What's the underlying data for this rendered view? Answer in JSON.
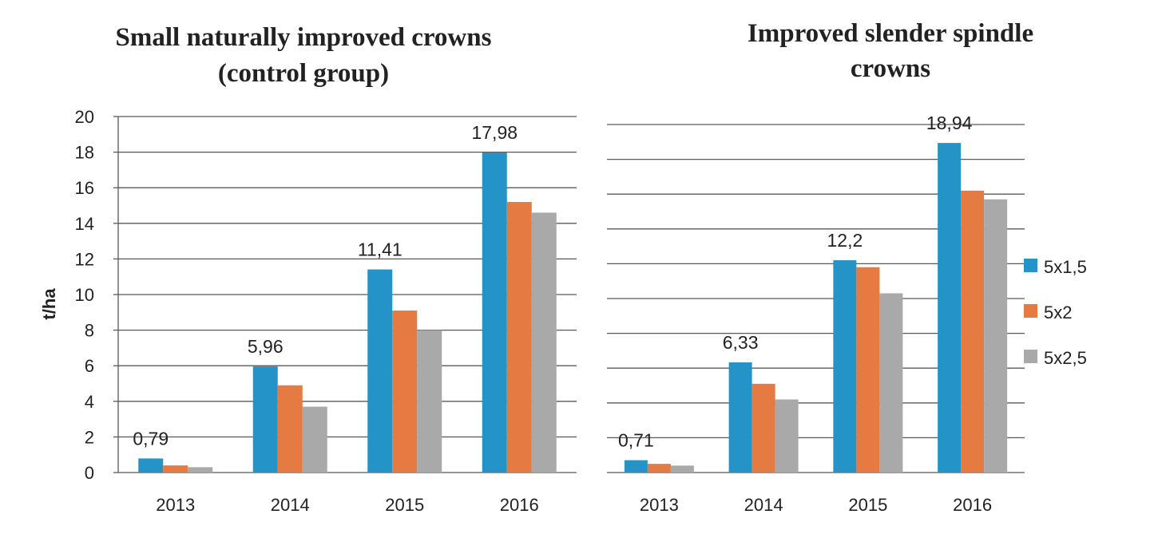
{
  "colors": {
    "5x1,5": "#2494c8",
    "5x2": "#e67a43",
    "5x2,5": "#a9a9a9"
  },
  "legend": {
    "entries": [
      "5x1,5",
      "5x2",
      "5x2,5"
    ]
  },
  "chart_data": [
    {
      "type": "bar",
      "title": "Small naturally improved crowns (control group)",
      "title_lines": [
        "Small naturally improved crowns",
        "(control group)"
      ],
      "ylabel": "t/ha",
      "xlabel": "",
      "ylim": [
        0,
        20
      ],
      "yticks": [
        "0",
        "2",
        "4",
        "6",
        "8",
        "10",
        "12",
        "14",
        "16",
        "18",
        "20"
      ],
      "grid": true,
      "categories": [
        "2013",
        "2014",
        "2015",
        "2016"
      ],
      "series": [
        {
          "name": "5x1,5",
          "values": [
            0.79,
            5.96,
            11.41,
            17.98
          ]
        },
        {
          "name": "5x2",
          "values": [
            0.4,
            4.9,
            9.1,
            15.2
          ]
        },
        {
          "name": "5x2,5",
          "values": [
            0.3,
            3.7,
            8.0,
            14.6
          ]
        }
      ],
      "data_labels": [
        "0,79",
        "5,96",
        "11,41",
        "17,98"
      ]
    },
    {
      "type": "bar",
      "title": "Improved slender spindle crowns",
      "title_lines": [
        "Improved slender spindle",
        "crowns"
      ],
      "ylabel": "",
      "xlabel": "",
      "ylim": [
        0,
        20
      ],
      "yticks": [],
      "grid": true,
      "categories": [
        "2013",
        "2014",
        "2015",
        "2016"
      ],
      "series": [
        {
          "name": "5x1,5",
          "values": [
            0.71,
            6.33,
            12.2,
            18.94
          ]
        },
        {
          "name": "5x2",
          "values": [
            0.5,
            5.1,
            11.8,
            16.2
          ]
        },
        {
          "name": "5x2,5",
          "values": [
            0.4,
            4.2,
            10.3,
            15.7
          ]
        }
      ],
      "data_labels": [
        "0,71",
        "6,33",
        "12,2",
        "18,94"
      ]
    }
  ]
}
